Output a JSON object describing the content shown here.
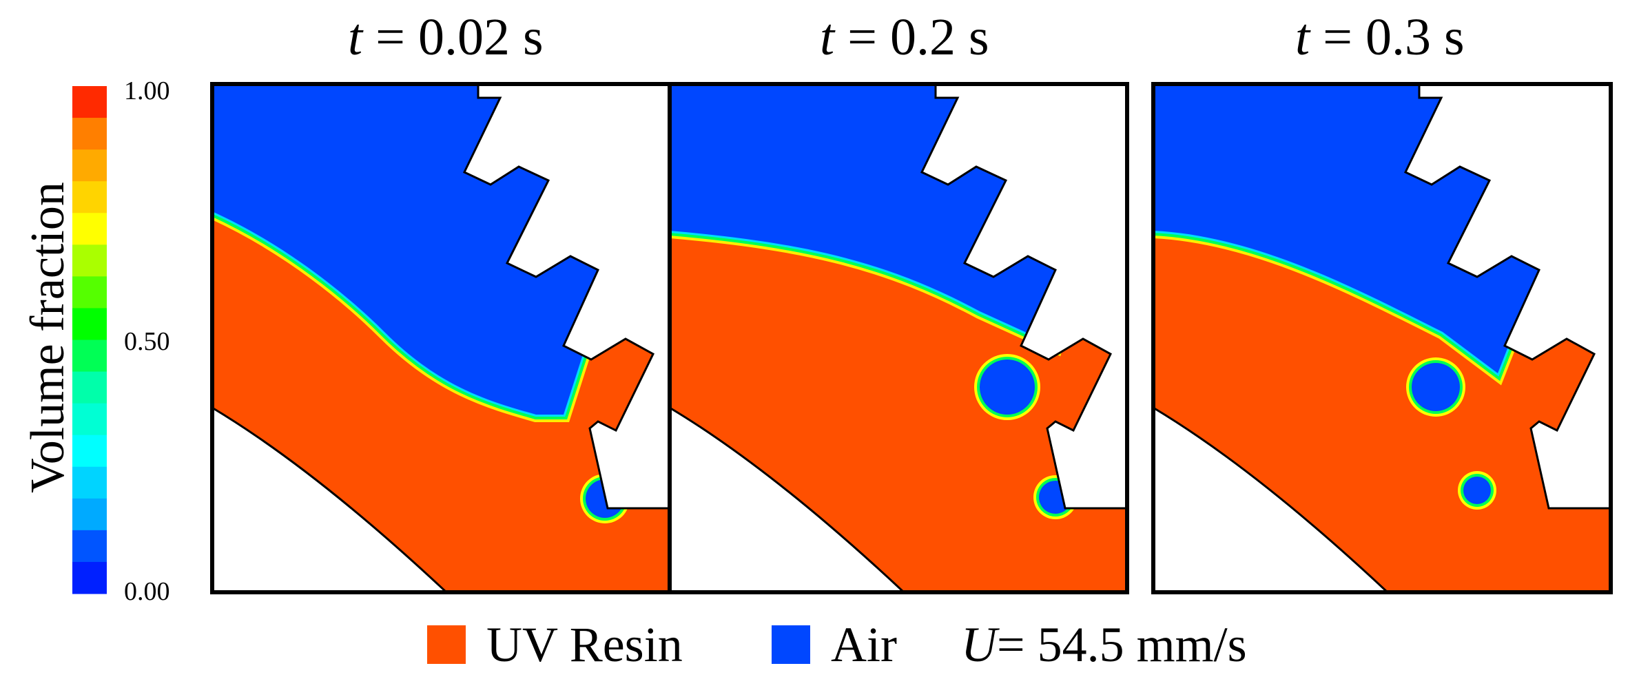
{
  "panels": [
    {
      "t_label": "t",
      "t_value": " = 0.02 s",
      "bubbles": [
        {
          "role": "small"
        }
      ]
    },
    {
      "t_label": "t",
      "t_value": " = 0.2 s",
      "bubbles": [
        {
          "role": "large"
        },
        {
          "role": "small"
        }
      ]
    },
    {
      "t_label": "t",
      "t_value": " = 0.3 s",
      "bubbles": [
        {
          "role": "large"
        },
        {
          "role": "small"
        }
      ]
    }
  ],
  "colorbar": {
    "label": "Volume fraction",
    "ticks": [
      "1.00",
      "0.50",
      "0.00"
    ],
    "colors": [
      "#ff2a00",
      "#ff7f00",
      "#ffaa00",
      "#ffd400",
      "#ffff00",
      "#aaff00",
      "#55ff00",
      "#00ff00",
      "#00ff55",
      "#00ffaa",
      "#00ffd4",
      "#00ffff",
      "#00d4ff",
      "#00aaff",
      "#0055ff",
      "#0020ff"
    ]
  },
  "legend": {
    "resin_label": "UV Resin",
    "resin_color": "#ff5000",
    "air_label": "Air",
    "air_color": "#0047ff",
    "velocity_symbol": "U",
    "velocity_value": " = 54.5 mm/s"
  }
}
